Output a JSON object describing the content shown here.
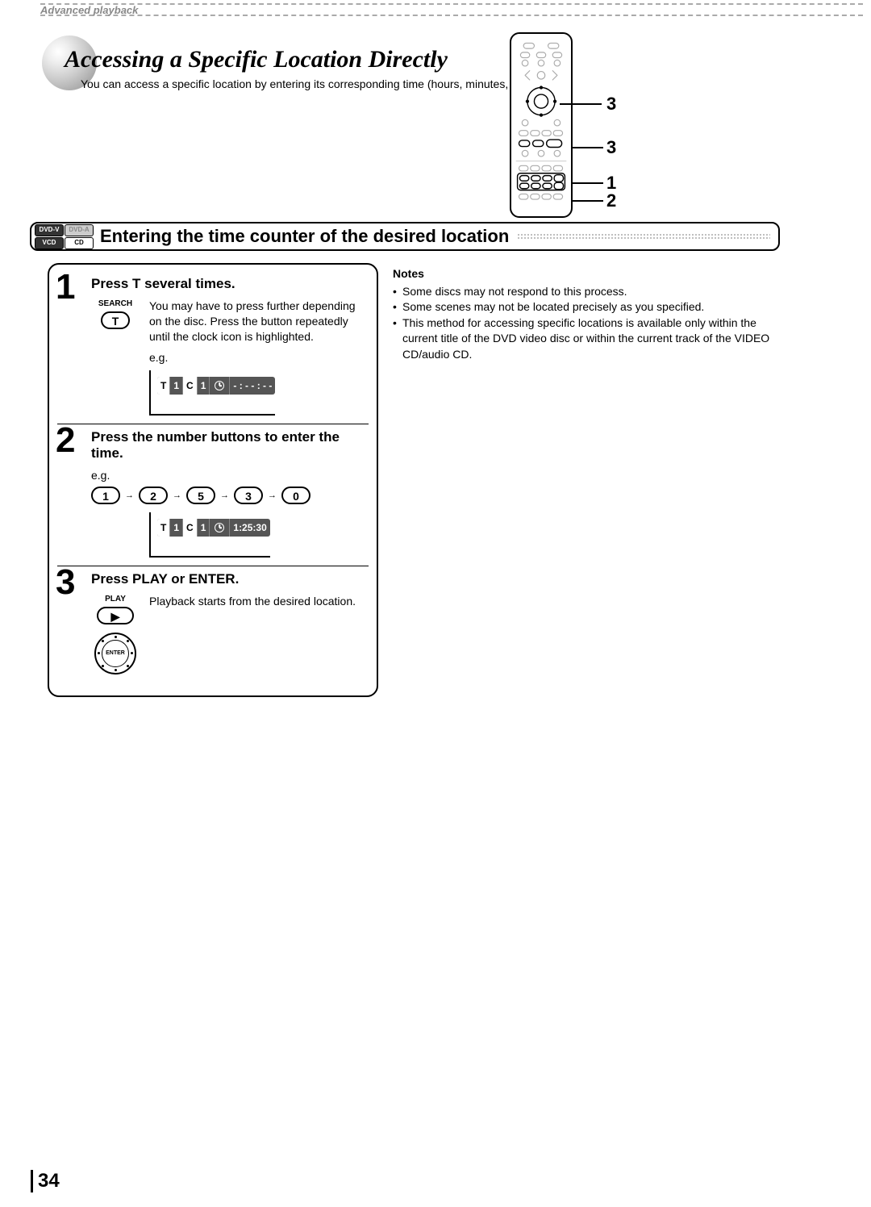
{
  "header_strip": "Advanced playback",
  "title": "Accessing a Specific Location Directly",
  "subtitle": "You can access a specific location by entering its corresponding time (hours, minutes, seconds).",
  "remote_callouts": [
    "3",
    "3",
    "1",
    "2"
  ],
  "section": {
    "badges": [
      "DVD-V",
      "DVD-A",
      "VCD",
      "CD"
    ],
    "title": "Entering the time counter of the desired location"
  },
  "steps": [
    {
      "num": "1",
      "head": "Press T several times.",
      "btn_label": "SEARCH",
      "btn_text": "T",
      "text": "You may have to press further depending on the disc. Press the button repeatedly until the clock icon is highlighted.",
      "eg": "e.g.",
      "display_groups": [
        {
          "inv": true,
          "text": "T"
        },
        {
          "inv": false,
          "text": "1"
        },
        {
          "inv": true,
          "text": "C"
        },
        {
          "inv": false,
          "text": "1"
        },
        {
          "inv": false,
          "text": "",
          "clock": true
        },
        {
          "inv": false,
          "text": "- : - - : - -"
        }
      ]
    },
    {
      "num": "2",
      "head": "Press the number buttons to enter the time.",
      "eg": "e.g.",
      "sequence": [
        "1",
        "2",
        "5",
        "3",
        "0"
      ],
      "display_groups": [
        {
          "inv": true,
          "text": "T"
        },
        {
          "inv": false,
          "text": "1"
        },
        {
          "inv": true,
          "text": "C"
        },
        {
          "inv": false,
          "text": "1"
        },
        {
          "inv": false,
          "text": "",
          "clock": true
        },
        {
          "inv": false,
          "text": "1:25:30"
        }
      ]
    },
    {
      "num": "3",
      "head": "Press PLAY or ENTER.",
      "btn_label": "PLAY",
      "btn_text": "▶",
      "enter_label": "ENTER",
      "text": "Playback starts from the desired location."
    }
  ],
  "notes_title": "Notes",
  "notes": [
    "Some discs may not respond to this process.",
    "Some scenes may not be located precisely as you specified.",
    "This method for accessing specific locations is available only within the current title of the DVD video disc or within the current track of the VIDEO CD/audio CD."
  ],
  "page_number": "34",
  "colors": {
    "text": "#000000",
    "bg": "#ffffff",
    "display_dark": "#555555",
    "grey": "#cccccc"
  }
}
